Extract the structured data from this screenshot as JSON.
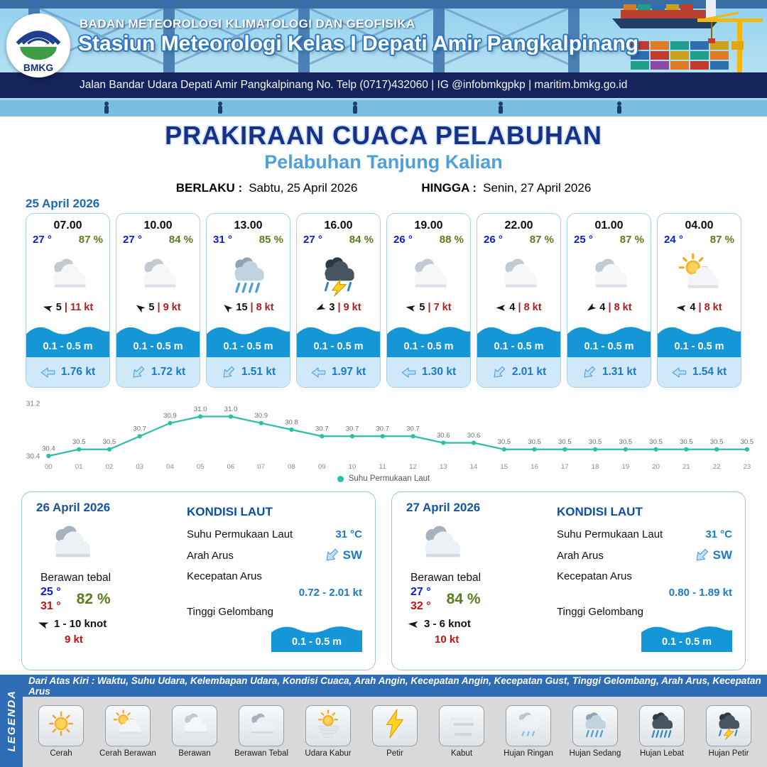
{
  "header": {
    "logo_text": "BMKG",
    "org_line": "BADAN METEOROLOGI KLIMATOLOGI DAN GEOFISIKA",
    "station_line": "Stasiun Meteorologi Kelas I Depati Amir Pangkalpinang",
    "address_line": "Jalan Bandar Udara Depati Amir Pangkalpinang No. Telp (0717)432060 | IG @infobmkgpkp | maritim.bmkg.go.id"
  },
  "title": {
    "main": "PRAKIRAAN CUACA PELABUHAN",
    "sub": "Pelabuhan Tanjung Kalian",
    "valid_from_label": "BERLAKU :",
    "valid_from": "Sabtu, 25 April 2026",
    "valid_to_label": "HINGGA :",
    "valid_to": "Senin, 27 April 2026"
  },
  "hourly": {
    "date": "25 April 2026",
    "cards": [
      {
        "time": "07.00",
        "temp": "27 °",
        "rh": "87 %",
        "icon": "berawan",
        "wind_rot": 195,
        "wind_speed": "5",
        "gust": "11 kt",
        "wave": "0.1 - 0.5 m",
        "current_rot": 180,
        "current": "1.76 kt"
      },
      {
        "time": "10.00",
        "temp": "27 °",
        "rh": "84 %",
        "icon": "berawan",
        "wind_rot": 215,
        "wind_speed": "5",
        "gust": "9 kt",
        "wave": "0.1 - 0.5 m",
        "current_rot": 135,
        "current": "1.72 kt"
      },
      {
        "time": "13.00",
        "temp": "31 °",
        "rh": "85 %",
        "icon": "hujan-sedang",
        "wind_rot": 220,
        "wind_speed": "15",
        "gust": "8 kt",
        "wave": "0.1 - 0.5 m",
        "current_rot": 135,
        "current": "1.51 kt"
      },
      {
        "time": "16.00",
        "temp": "27 °",
        "rh": "84 %",
        "icon": "hujan-petir",
        "wind_rot": 155,
        "wind_speed": "3",
        "gust": "9 kt",
        "wave": "0.1 - 0.5 m",
        "current_rot": 180,
        "current": "1.97 kt"
      },
      {
        "time": "19.00",
        "temp": "26 °",
        "rh": "88 %",
        "icon": "berawan",
        "wind_rot": 190,
        "wind_speed": "5",
        "gust": "7 kt",
        "wave": "0.1 - 0.5 m",
        "current_rot": 180,
        "current": "1.30 kt"
      },
      {
        "time": "22.00",
        "temp": "26 °",
        "rh": "87 %",
        "icon": "berawan",
        "wind_rot": 180,
        "wind_speed": "4",
        "gust": "8 kt",
        "wave": "0.1 - 0.5 m",
        "current_rot": 135,
        "current": "2.01 kt"
      },
      {
        "time": "01.00",
        "temp": "25 °",
        "rh": "87 %",
        "icon": "berawan",
        "wind_rot": 145,
        "wind_speed": "4",
        "gust": "8 kt",
        "wave": "0.1 - 0.5 m",
        "current_rot": 135,
        "current": "1.31 kt"
      },
      {
        "time": "04.00",
        "temp": "24 °",
        "rh": "87 %",
        "icon": "cerah-berawan",
        "wind_rot": 185,
        "wind_speed": "4",
        "gust": "8 kt",
        "wave": "0.1 - 0.5 m",
        "current_rot": 180,
        "current": "1.54 kt"
      }
    ]
  },
  "chart_data": {
    "type": "line",
    "series_name": "Suhu Permukaan Laut",
    "x": [
      "00",
      "01",
      "02",
      "03",
      "04",
      "05",
      "06",
      "07",
      "08",
      "09",
      "10",
      "11",
      "12",
      "13",
      "14",
      "15",
      "16",
      "17",
      "18",
      "19",
      "20",
      "21",
      "22",
      "23"
    ],
    "values": [
      30.4,
      30.5,
      30.5,
      30.7,
      30.9,
      31.0,
      31.0,
      30.9,
      30.8,
      30.7,
      30.7,
      30.7,
      30.7,
      30.6,
      30.6,
      30.5,
      30.5,
      30.5,
      30.5,
      30.5,
      30.5,
      30.5,
      30.5,
      30.5
    ],
    "ylim": [
      30.4,
      31.2
    ],
    "xlabel": "",
    "ylabel": "",
    "grid": false,
    "legend_position": "bottom",
    "line_color": "#2cbfa6"
  },
  "daily": [
    {
      "date": "26 April 2026",
      "icon": "berawan-tebal",
      "condition": "Berawan tebal",
      "temp_min": "25 °",
      "temp_max": "31 °",
      "rh": "82 %",
      "wind_rot": 200,
      "wind_range": "1 - 10 knot",
      "gust": "9 kt",
      "sea_title": "KONDISI LAUT",
      "sst_label": "Suhu Permukaan Laut",
      "sst": "31 °C",
      "current_dir_label": "Arah Arus",
      "current_dir": "SW",
      "current_rot": 135,
      "current_speed_label": "Kecepatan Arus",
      "current_speed": "0.72 - 2.01 kt",
      "wave_label": "Tinggi Gelombang",
      "wave": "0.1 - 0.5 m"
    },
    {
      "date": "27 April 2026",
      "icon": "berawan-tebal",
      "condition": "Berawan tebal",
      "temp_min": "27 °",
      "temp_max": "32 °",
      "rh": "84 %",
      "wind_rot": 185,
      "wind_range": "3 - 6 knot",
      "gust": "10 kt",
      "sea_title": "KONDISI LAUT",
      "sst_label": "Suhu Permukaan Laut",
      "sst": "31 °C",
      "current_dir_label": "Arah Arus",
      "current_dir": "SW",
      "current_rot": 135,
      "current_speed_label": "Kecepatan Arus",
      "current_speed": "0.80 - 1.89 kt",
      "wave_label": "Tinggi Gelombang",
      "wave": "0.1 - 0.5 m"
    }
  ],
  "legend": {
    "title": "LEGENDA",
    "note": "Dari Atas Kiri : Waktu, Suhu Udara, Kelembapan Udara, Kondisi Cuaca, Arah Angin, Kecepatan Angin, Kecepatan Gust, Tinggi Gelombang, Arah Arus, Kecepatan Arus",
    "items": [
      {
        "label": "Cerah",
        "icon": "cerah"
      },
      {
        "label": "Cerah Berawan",
        "icon": "cerah-berawan"
      },
      {
        "label": "Berawan",
        "icon": "berawan"
      },
      {
        "label": "Berawan Tebal",
        "icon": "berawan-tebal"
      },
      {
        "label": "Udara Kabur",
        "icon": "udara-kabur"
      },
      {
        "label": "Petir",
        "icon": "petir"
      },
      {
        "label": "Kabut",
        "icon": "kabut"
      },
      {
        "label": "Hujan Ringan",
        "icon": "hujan-ringan"
      },
      {
        "label": "Hujan Sedang",
        "icon": "hujan-sedang"
      },
      {
        "label": "Hujan Lebat",
        "icon": "hujan-lebat"
      },
      {
        "label": "Hujan Petir",
        "icon": "hujan-petir"
      }
    ]
  },
  "colors": {
    "navy_band": "#14235a",
    "title_navy": "#1a2f86",
    "sub_blue": "#4f9fd9",
    "temp_blue": "#0b1ecb",
    "temp_red": "#c11212",
    "rh_green": "#5a7d1c",
    "gust_red": "#b02020",
    "wave_blue": "#1596d6",
    "current_blue": "#1e78c8",
    "legend_strip_blue": "#2e6cb5",
    "chart_teal": "#2cbfa6"
  }
}
